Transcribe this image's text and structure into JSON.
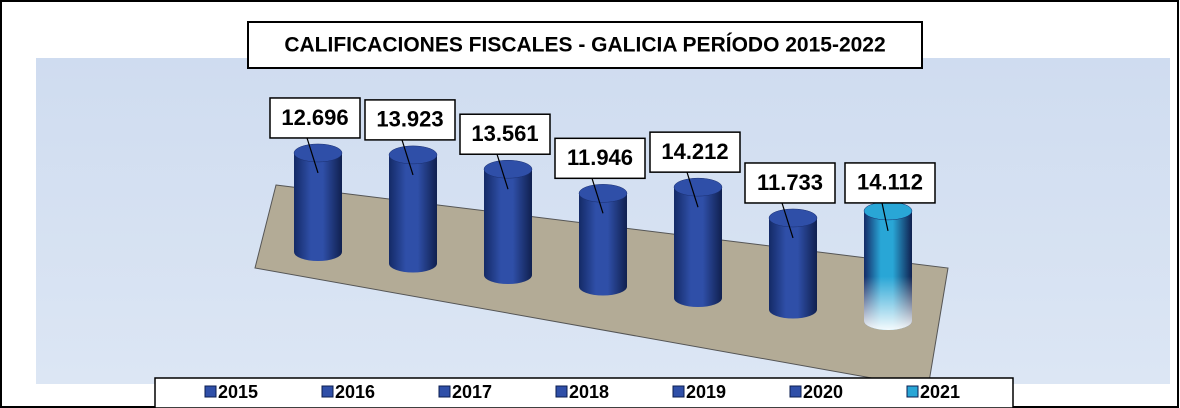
{
  "chart_data": {
    "type": "cylinder",
    "title": "CALIFICACIONES FISCALES -  GALICIA PERÍODO 2015-2022",
    "categories": [
      "2015",
      "2016",
      "2017",
      "2018",
      "2019",
      "2020",
      "2021"
    ],
    "values": [
      12696,
      13923,
      13561,
      11946,
      14212,
      11733,
      14112
    ],
    "value_labels": [
      "12.696",
      "13.923",
      "13.561",
      "11.946",
      "14.212",
      "11.733",
      "14.112"
    ],
    "colors": [
      "#2f4fa8",
      "#2f4fa8",
      "#2f4fa8",
      "#2f4fa8",
      "#2f4fa8",
      "#2f4fa8",
      "#29a6d6"
    ]
  }
}
